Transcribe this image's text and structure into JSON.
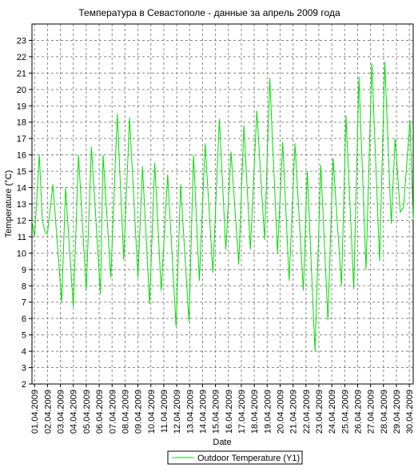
{
  "chart_data": {
    "type": "line",
    "title": "Температура в Севастополе - данные за апрель 2009 года",
    "xlabel": "Date",
    "ylabel": "Temperature (°C)",
    "x": [
      0.8,
      1.0,
      1.37,
      1.6,
      1.85,
      2.0,
      2.42,
      3.1,
      3.4,
      4.0,
      4.4,
      5.0,
      5.4,
      6.1,
      6.3,
      6.9,
      7.4,
      7.9,
      8.35,
      9.0,
      9.35,
      9.9,
      10.3,
      10.8,
      11.3,
      11.95,
      12.3,
      12.95,
      13.3,
      13.75,
      14.2,
      14.8,
      15.3,
      15.8,
      16.2,
      16.8,
      17.2,
      17.7,
      18.2,
      18.8,
      19.2,
      19.8,
      20.2,
      20.7,
      21.15,
      21.8,
      22.1,
      22.7,
      23.15,
      23.7,
      24.1,
      24.75,
      25.1,
      25.7,
      26.1,
      26.65,
      27.1,
      27.7,
      28.1,
      28.6,
      28.9,
      29.3,
      29.55,
      30.05,
      30.3
    ],
    "series": [
      {
        "name": "Outdoor Temperature (Y1)",
        "color": "#00e000",
        "values": [
          12,
          11,
          16,
          12,
          11.2,
          11.2,
          14.2,
          7,
          14,
          6.7,
          16,
          7.7,
          16.5,
          7.5,
          16,
          8.5,
          18.5,
          9.6,
          18.3,
          8.5,
          15.3,
          6.9,
          15.5,
          7.7,
          14.8,
          5.5,
          14.2,
          5.8,
          16,
          8.3,
          16.7,
          8.8,
          18.2,
          10.2,
          16.2,
          9.3,
          17.8,
          10.2,
          18.7,
          10.8,
          20.7,
          10,
          16.8,
          8.3,
          16.7,
          7.7,
          15,
          4,
          15.4,
          5.9,
          15.8,
          8,
          18.4,
          7.8,
          20.8,
          9,
          21.6,
          9.5,
          21.7,
          11.8,
          17,
          12.5,
          12.8,
          18.1,
          12
        ]
      }
    ],
    "xlim": [
      0.8,
      30.3
    ],
    "xticks": [
      {
        "value": 1,
        "label": "01.04.2009"
      },
      {
        "value": 2,
        "label": "02.04.2009"
      },
      {
        "value": 3,
        "label": "03.04.2009"
      },
      {
        "value": 4,
        "label": "04.04.2009"
      },
      {
        "value": 5,
        "label": "05.04.2009"
      },
      {
        "value": 6,
        "label": "06.04.2009"
      },
      {
        "value": 7,
        "label": "07.04.2009"
      },
      {
        "value": 8,
        "label": "08.04.2009"
      },
      {
        "value": 9,
        "label": "09.04.2009"
      },
      {
        "value": 10,
        "label": "10.04.2009"
      },
      {
        "value": 11,
        "label": "11.04.2009"
      },
      {
        "value": 12,
        "label": "12.04.2009"
      },
      {
        "value": 13,
        "label": "13.04.2009"
      },
      {
        "value": 14,
        "label": "14.04.2009"
      },
      {
        "value": 15,
        "label": "15.04.2009"
      },
      {
        "value": 16,
        "label": "16.04.2009"
      },
      {
        "value": 17,
        "label": "17.04.2009"
      },
      {
        "value": 18,
        "label": "18.04.2009"
      },
      {
        "value": 19,
        "label": "19.04.2009"
      },
      {
        "value": 20,
        "label": "20.04.2009"
      },
      {
        "value": 21,
        "label": "21.04.2009"
      },
      {
        "value": 22,
        "label": "22.04.2009"
      },
      {
        "value": 23,
        "label": "23.04.2009"
      },
      {
        "value": 24,
        "label": "24.04.2009"
      },
      {
        "value": 25,
        "label": "25.04.2009"
      },
      {
        "value": 26,
        "label": "26.04.2009"
      },
      {
        "value": 27,
        "label": "27.04.2009"
      },
      {
        "value": 28,
        "label": "28.04.2009"
      },
      {
        "value": 29,
        "label": "29.04.2009"
      },
      {
        "value": 30,
        "label": "30.04.2009"
      }
    ],
    "ylim": [
      2,
      24
    ],
    "yticks": [
      2,
      3,
      4,
      5,
      6,
      7,
      8,
      9,
      10,
      11,
      12,
      13,
      14,
      15,
      16,
      17,
      18,
      19,
      20,
      21,
      22,
      23
    ],
    "grid": true
  }
}
